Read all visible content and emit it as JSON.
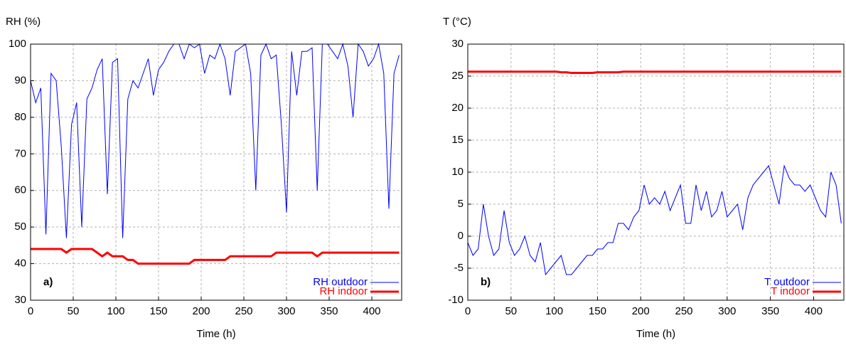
{
  "chart_data": [
    {
      "type": "line",
      "ylabel": "RH (%)",
      "xlabel": "Time (h)",
      "panel_label": "a)",
      "x": [
        0,
        6,
        12,
        18,
        24,
        30,
        36,
        42,
        48,
        54,
        60,
        66,
        72,
        78,
        84,
        90,
        96,
        102,
        108,
        114,
        120,
        126,
        132,
        138,
        144,
        150,
        156,
        162,
        168,
        174,
        180,
        186,
        192,
        198,
        204,
        210,
        216,
        222,
        228,
        234,
        240,
        246,
        252,
        258,
        264,
        270,
        276,
        282,
        288,
        294,
        300,
        306,
        312,
        318,
        324,
        330,
        336,
        342,
        348,
        354,
        360,
        366,
        372,
        378,
        384,
        390,
        396,
        402,
        408,
        414,
        420,
        426,
        432
      ],
      "xlim": [
        0,
        435
      ],
      "xticks": [
        0,
        50,
        100,
        150,
        200,
        250,
        300,
        350,
        400
      ],
      "ylim": [
        30,
        100
      ],
      "yticks": [
        30,
        40,
        50,
        60,
        70,
        80,
        90,
        100
      ],
      "grid": true,
      "legend": "lower right",
      "series": [
        {
          "name": "RH outdoor",
          "color": "#0000ff",
          "width": 1,
          "values": [
            90,
            84,
            88,
            48,
            92,
            90,
            72,
            47,
            78,
            84,
            50,
            85,
            88,
            93,
            96,
            59,
            95,
            96,
            47,
            85,
            90,
            88,
            92,
            96,
            86,
            93,
            95,
            98,
            100,
            100,
            96,
            100,
            99,
            100,
            92,
            97,
            96,
            100,
            96,
            86,
            98,
            99,
            100,
            92,
            60,
            97,
            100,
            96,
            97,
            78,
            54,
            98,
            86,
            98,
            98,
            99,
            60,
            100,
            100,
            98,
            96,
            100,
            94,
            80,
            100,
            98,
            94,
            96,
            100,
            92,
            55,
            92,
            97
          ]
        },
        {
          "name": "RH indoor",
          "color": "#ff0000",
          "width": 3,
          "values": [
            44,
            44,
            44,
            44,
            44,
            44,
            44,
            43,
            44,
            44,
            44,
            44,
            44,
            43,
            42,
            43,
            42,
            42,
            42,
            41,
            41,
            40,
            40,
            40,
            40,
            40,
            40,
            40,
            40,
            40,
            40,
            40,
            41,
            41,
            41,
            41,
            41,
            41,
            41,
            42,
            42,
            42,
            42,
            42,
            42,
            42,
            42,
            42,
            43,
            43,
            43,
            43,
            43,
            43,
            43,
            43,
            42,
            43,
            43,
            43,
            43,
            43,
            43,
            43,
            43,
            43,
            43,
            43,
            43,
            43,
            43,
            43,
            43
          ]
        }
      ]
    },
    {
      "type": "line",
      "ylabel": "T (°C)",
      "xlabel": "Time (h)",
      "panel_label": "b)",
      "x": [
        0,
        6,
        12,
        18,
        24,
        30,
        36,
        42,
        48,
        54,
        60,
        66,
        72,
        78,
        84,
        90,
        96,
        102,
        108,
        114,
        120,
        126,
        132,
        138,
        144,
        150,
        156,
        162,
        168,
        174,
        180,
        186,
        192,
        198,
        204,
        210,
        216,
        222,
        228,
        234,
        240,
        246,
        252,
        258,
        264,
        270,
        276,
        282,
        288,
        294,
        300,
        306,
        312,
        318,
        324,
        330,
        336,
        342,
        348,
        354,
        360,
        366,
        372,
        378,
        384,
        390,
        396,
        402,
        408,
        414,
        420,
        426,
        432
      ],
      "xlim": [
        0,
        435
      ],
      "xticks": [
        0,
        50,
        100,
        150,
        200,
        250,
        300,
        350,
        400
      ],
      "ylim": [
        -10,
        30
      ],
      "yticks": [
        -10,
        -5,
        0,
        5,
        10,
        15,
        20,
        25,
        30
      ],
      "grid": true,
      "legend": "lower right",
      "series": [
        {
          "name": "T outdoor",
          "color": "#0000ff",
          "width": 1,
          "values": [
            -1,
            -3,
            -2,
            5,
            0,
            -3,
            -2,
            4,
            -1,
            -3,
            -2,
            0,
            -3,
            -4,
            -1,
            -6,
            -5,
            -4,
            -3,
            -6,
            -6,
            -5,
            -4,
            -3,
            -3,
            -2,
            -2,
            -1,
            -1,
            2,
            2,
            1,
            3,
            4,
            8,
            5,
            6,
            5,
            7,
            4,
            6,
            8,
            2,
            2,
            8,
            4,
            7,
            3,
            4,
            7,
            3,
            4,
            5,
            1,
            6,
            8,
            9,
            10,
            11,
            8,
            5,
            11,
            9,
            8,
            8,
            7,
            8,
            6,
            4,
            3,
            10,
            8,
            2
          ]
        },
        {
          "name": "T indoor",
          "color": "#ff0000",
          "width": 3,
          "values": [
            25.7,
            25.7,
            25.7,
            25.7,
            25.7,
            25.7,
            25.7,
            25.7,
            25.7,
            25.7,
            25.7,
            25.7,
            25.7,
            25.7,
            25.7,
            25.7,
            25.7,
            25.7,
            25.6,
            25.6,
            25.5,
            25.5,
            25.5,
            25.5,
            25.5,
            25.6,
            25.6,
            25.6,
            25.6,
            25.6,
            25.7,
            25.7,
            25.7,
            25.7,
            25.7,
            25.7,
            25.7,
            25.7,
            25.7,
            25.7,
            25.7,
            25.7,
            25.7,
            25.7,
            25.7,
            25.7,
            25.7,
            25.7,
            25.7,
            25.7,
            25.7,
            25.7,
            25.7,
            25.7,
            25.7,
            25.7,
            25.7,
            25.7,
            25.7,
            25.7,
            25.7,
            25.7,
            25.7,
            25.7,
            25.7,
            25.7,
            25.7,
            25.7,
            25.7,
            25.7,
            25.7,
            25.7,
            25.7
          ]
        }
      ]
    }
  ]
}
